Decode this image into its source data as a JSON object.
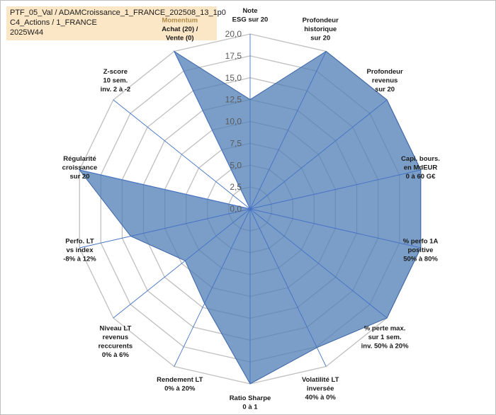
{
  "title": {
    "lines": [
      "PTF_05_Val / ADAMCroissance_1_FRANCE_202508_13_1p0",
      "C4_Actions / 1_FRANCE",
      "2025W44"
    ]
  },
  "chart_data": {
    "type": "radar",
    "title": "PTF_05_Val / ADAMCroissance_1_FRANCE_202508_13_1p0",
    "scale": {
      "min": 0,
      "max": 20,
      "step": 2.5
    },
    "tick_labels": [
      "0,0",
      "2,5",
      "5,0",
      "7,5",
      "10,0",
      "12,5",
      "15,0",
      "17,5",
      "20,0"
    ],
    "grid": true,
    "axes": [
      {
        "label": [
          "Note",
          "ESG sur 20"
        ]
      },
      {
        "label": [
          "Profondeur",
          "historique",
          "sur 20"
        ]
      },
      {
        "label": [
          "Profondeur",
          "revenus",
          "sur 20"
        ]
      },
      {
        "label": [
          "Capi. bours.",
          "en MdEUR",
          "0 à 60 G€"
        ]
      },
      {
        "label": [
          "% perfo 1A",
          "positive",
          "50% à 80%"
        ]
      },
      {
        "label": [
          "% perte max.",
          "sur 1 sem.",
          "inv. 50% à 20%"
        ]
      },
      {
        "label": [
          "Volatilité LT",
          "inversée",
          "40% à 0%"
        ]
      },
      {
        "label": [
          "Ratio Sharpe",
          "0 à 1"
        ]
      },
      {
        "label": [
          "Rendement LT",
          "0% à 20%"
        ]
      },
      {
        "label": [
          "Niveau LT",
          "revenus",
          "reccurents",
          "0% à 6%"
        ]
      },
      {
        "label": [
          "Perfo. LT",
          "vs index",
          "-8% à 12%"
        ]
      },
      {
        "label": [
          "Régularité",
          "croissance",
          "sur 20"
        ]
      },
      {
        "label": [
          "Z-score",
          "10 sem.",
          "inv. 2 à -2"
        ]
      },
      {
        "label": [
          "Momentum",
          "Achat (20) /",
          "Vente (0)"
        ],
        "highlight_first_line": true
      }
    ],
    "series": [
      {
        "name": "PTF_05_Val",
        "color": "#4f7db5",
        "values": [
          12.5,
          20,
          20,
          20,
          20,
          20,
          17.6,
          20,
          12.0,
          9.5,
          14.0,
          20,
          0,
          20
        ]
      }
    ]
  }
}
